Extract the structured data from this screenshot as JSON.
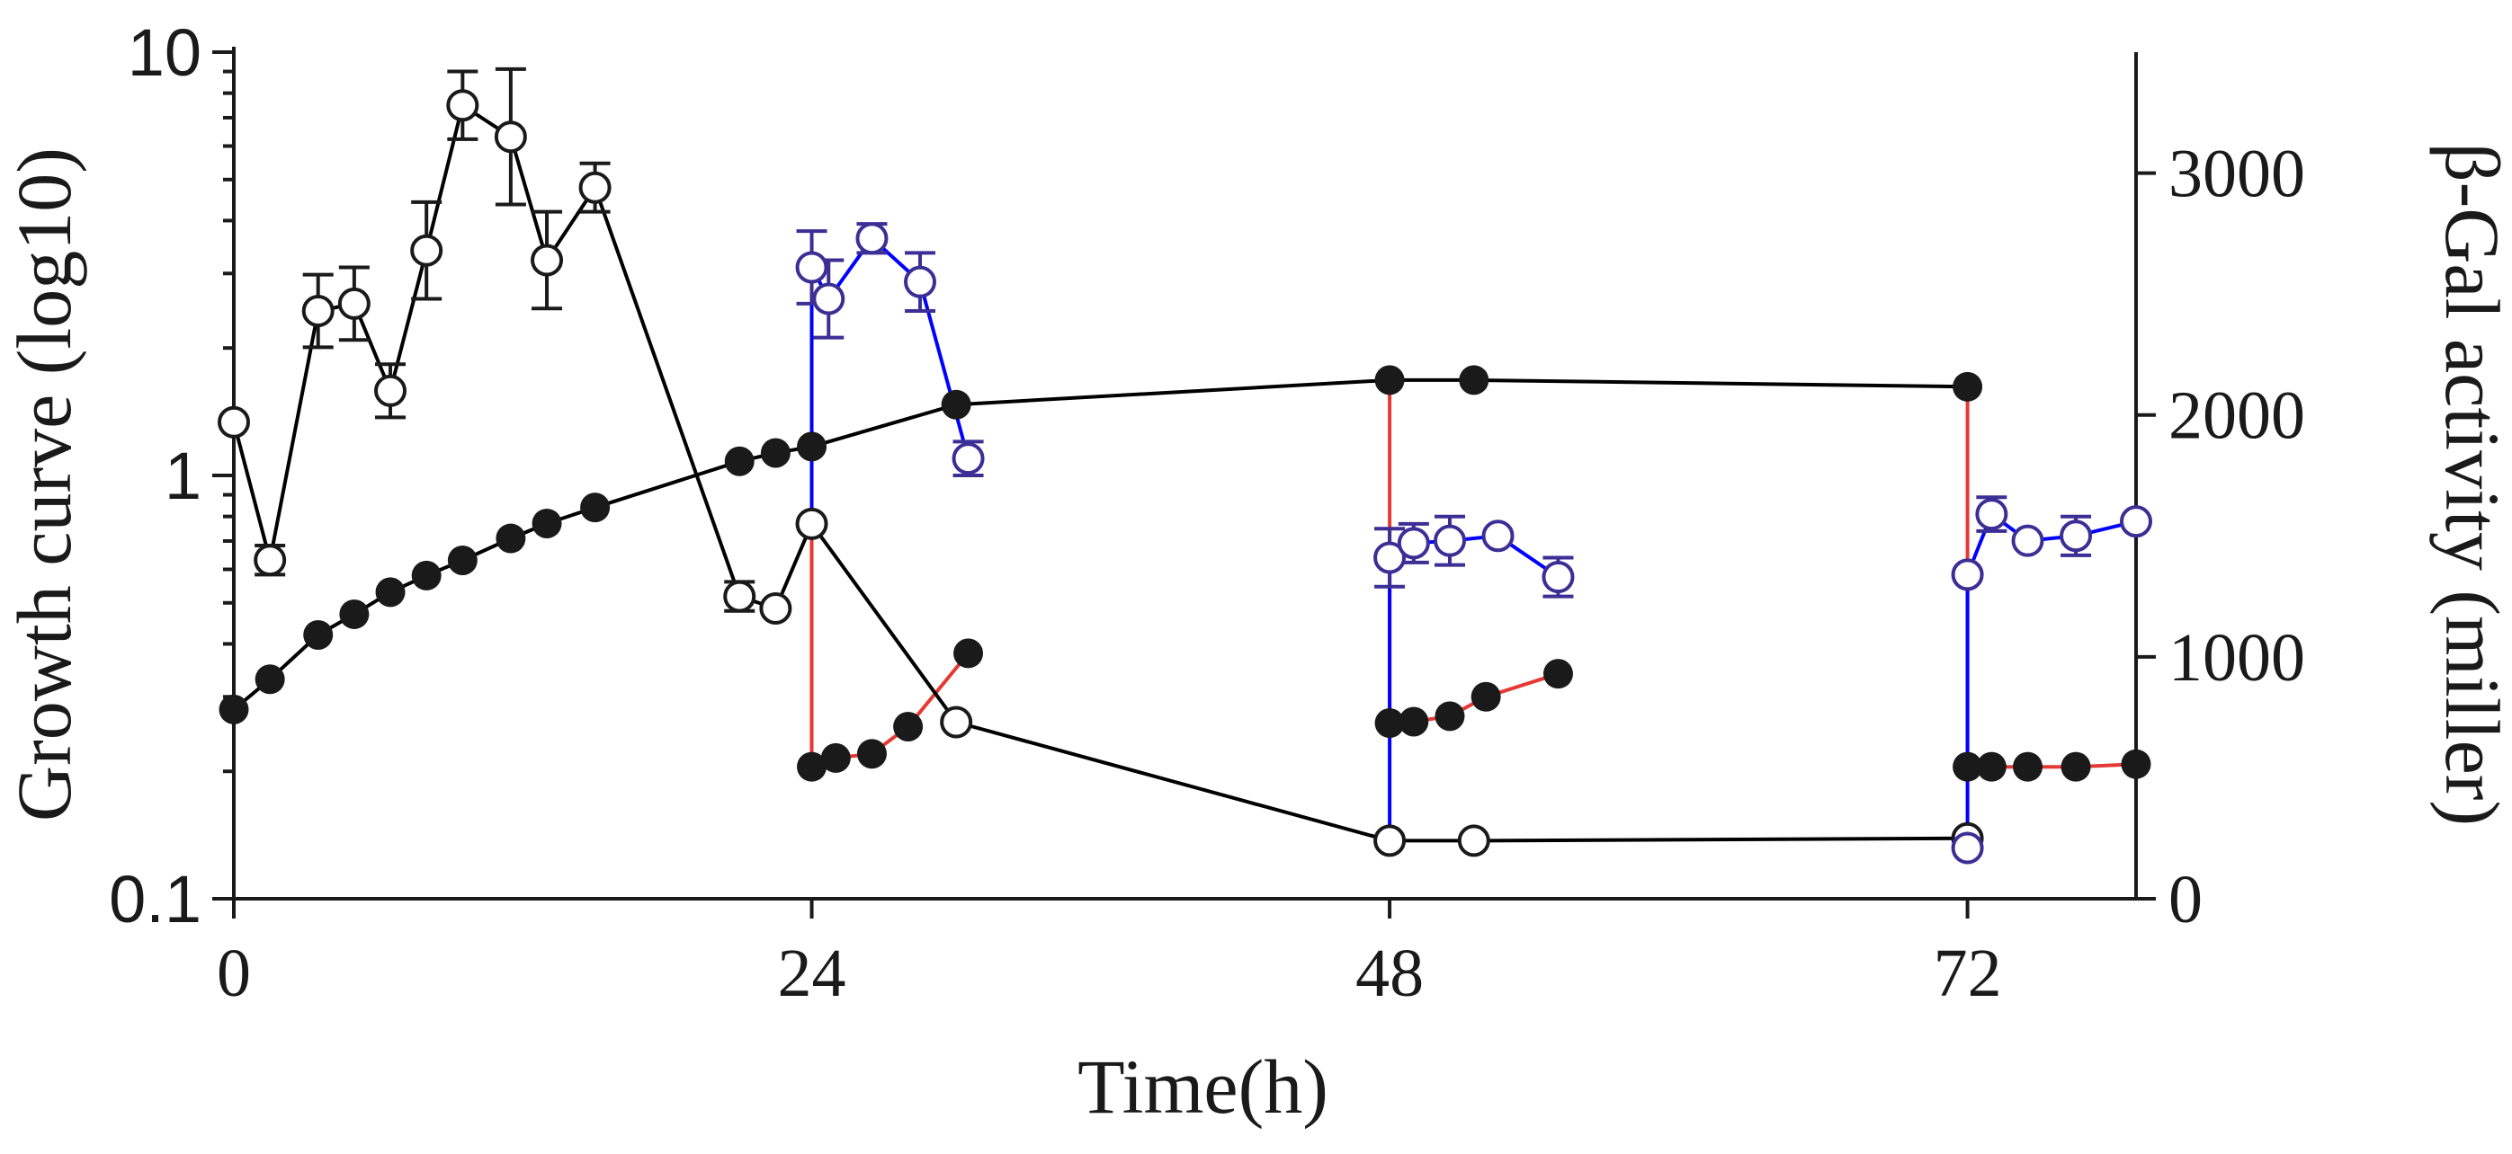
{
  "chart_data": {
    "type": "line",
    "title": "",
    "xlabel": "Time(h)",
    "ylabel_left": "Growth curve (log10)",
    "ylabel_right": "β-Gal activity (miller)",
    "xlim": [
      0,
      79
    ],
    "ylim_left": [
      0.1,
      10
    ],
    "yscale_left": "log",
    "ylim_right": [
      0,
      3500
    ],
    "grid": false,
    "legend": "none",
    "x_ticks": [
      "0",
      "24",
      "48",
      "72"
    ],
    "x_tick_values": [
      0,
      24,
      48,
      72
    ],
    "y_left_ticks": [
      "0.1",
      "1",
      "10"
    ],
    "y_left_tick_values": [
      0.1,
      1,
      10
    ],
    "y_right_ticks": [
      "0",
      "1000",
      "2000",
      "3000"
    ],
    "y_right_tick_values": [
      0,
      1000,
      2000,
      3000
    ],
    "colors": {
      "axis": "#1a1a1a",
      "growth": "#000000",
      "gal_black": "#1a1a1a",
      "gal_blue": "#3b2f96",
      "red": "#e53935"
    },
    "series": [
      {
        "name": "growth-curve",
        "axis": "left",
        "marker": "filled-circle",
        "segments": [
          {
            "color": "black",
            "points": [
              [
                0,
                0.28
              ],
              [
                1.5,
                0.33
              ],
              [
                3.5,
                0.42
              ],
              [
                5,
                0.47
              ],
              [
                6.5,
                0.53
              ],
              [
                8,
                0.58
              ],
              [
                9.5,
                0.63
              ],
              [
                11.5,
                0.71
              ],
              [
                13,
                0.77
              ],
              [
                15,
                0.84
              ],
              [
                21,
                1.08
              ],
              [
                22.5,
                1.13
              ],
              [
                24,
                1.17
              ],
              [
                30,
                1.47
              ],
              [
                48,
                1.68
              ],
              [
                51.5,
                1.68
              ],
              [
                72,
                1.62
              ]
            ]
          },
          {
            "color": "red",
            "points": [
              [
                24,
                1.17
              ],
              [
                24,
                0.205
              ],
              [
                25,
                0.215
              ],
              [
                26.5,
                0.22
              ],
              [
                28,
                0.255
              ],
              [
                30.5,
                0.38
              ]
            ]
          },
          {
            "color": "red",
            "points": [
              [
                48,
                1.68
              ],
              [
                48,
                0.26
              ],
              [
                49,
                0.262
              ],
              [
                50.5,
                0.27
              ],
              [
                52,
                0.3
              ],
              [
                55,
                0.34
              ]
            ]
          },
          {
            "color": "red",
            "points": [
              [
                72,
                1.62
              ],
              [
                72,
                0.205
              ],
              [
                73,
                0.205
              ],
              [
                74.5,
                0.205
              ],
              [
                76.5,
                0.205
              ],
              [
                79,
                0.208
              ]
            ]
          }
        ]
      },
      {
        "name": "beta-gal-activity",
        "axis": "right",
        "marker": "open-circle",
        "segments": [
          {
            "color": "black",
            "points": [
              [
                0,
                1970,
                0
              ],
              [
                1.5,
                1400,
                60
              ],
              [
                3.5,
                2430,
                150
              ],
              [
                5,
                2460,
                150
              ],
              [
                6.5,
                2100,
                110
              ],
              [
                8,
                2680,
                200
              ],
              [
                9.5,
                3280,
                140
              ],
              [
                11.5,
                3150,
                280
              ],
              [
                13,
                2640,
                200
              ],
              [
                15,
                2940,
                100
              ],
              [
                21,
                1250,
                60
              ],
              [
                22.5,
                1200,
                0
              ],
              [
                24,
                1550,
                0
              ],
              [
                30,
                730,
                0
              ],
              [
                48,
                240,
                0
              ],
              [
                51.5,
                240,
                0
              ],
              [
                72,
                250,
                0
              ]
            ]
          },
          {
            "color": "blue",
            "points": [
              [
                24,
                1550,
                0
              ],
              [
                24,
                2610,
                150
              ],
              [
                24.7,
                2480,
                160
              ],
              [
                26.5,
                2730,
                60
              ],
              [
                28.5,
                2550,
                120
              ],
              [
                30.5,
                1820,
                70
              ]
            ]
          },
          {
            "color": "blue",
            "points": [
              [
                48,
                240,
                0
              ],
              [
                48,
                1410,
                120
              ],
              [
                49,
                1470,
                80
              ],
              [
                50.5,
                1480,
                100
              ],
              [
                52.5,
                1500,
                0
              ],
              [
                55,
                1330,
                80
              ]
            ]
          },
          {
            "color": "blue",
            "points": [
              [
                72,
                250,
                0
              ],
              [
                72,
                210,
                0
              ],
              [
                72,
                1340,
                0
              ],
              [
                73,
                1590,
                70
              ],
              [
                74.5,
                1480,
                0
              ],
              [
                76.5,
                1500,
                80
              ],
              [
                79,
                1560,
                0
              ]
            ]
          }
        ]
      }
    ]
  }
}
